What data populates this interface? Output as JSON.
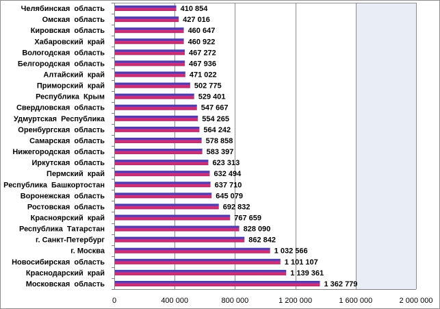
{
  "chart_data": {
    "type": "bar",
    "orientation": "horizontal",
    "categories": [
      "Челябинская  область",
      "Омская  область",
      "Кировская  область",
      "Хабаровский  край",
      "Вологодская  область",
      "Белгородская  область",
      "Алтайский  край",
      "Приморский  край",
      "Республика  Крым",
      "Свердловская  область",
      "Удмуртская  Республика",
      "Оренбургская  область",
      "Самарская  область",
      "Нижегородская  область",
      "Иркутская  область",
      "Пермский  край",
      "Республика  Башкортостан",
      "Воронежская  область",
      "Ростовская  область",
      "Красноярский  край",
      "Республика  Татарстан",
      "г. Санкт-Петербург",
      "г. Москва",
      "Новосибирская  область",
      "Краснодарский  край",
      "Московская  область"
    ],
    "values": [
      410854,
      427016,
      460647,
      460922,
      467272,
      467936,
      471022,
      502775,
      529401,
      547667,
      554265,
      564242,
      578858,
      583397,
      623313,
      632494,
      637710,
      645079,
      692832,
      767659,
      828090,
      862842,
      1032566,
      1101107,
      1139361,
      1362779
    ],
    "value_labels": [
      "410 854",
      "427 016",
      "460 647",
      "460 922",
      "467 272",
      "467 936",
      "471 022",
      "502 775",
      "529 401",
      "547 667",
      "554 265",
      "564 242",
      "578 858",
      "583 397",
      "623 313",
      "632 494",
      "637 710",
      "645 079",
      "692 832",
      "767 659",
      "828 090",
      "862 842",
      "1 032 566",
      "1 101 107",
      "1 139 361",
      "1 362 779"
    ],
    "xlim": [
      0,
      2000000
    ],
    "x_ticks": [
      0,
      400000,
      800000,
      1200000,
      1600000,
      2000000
    ],
    "x_tick_labels": [
      "0",
      "400 000",
      "800 000",
      "1 200 000",
      "1 600 000",
      "2 000 000"
    ],
    "grid": true,
    "legend": "none",
    "colors": {
      "bar_top": "#3a3aa8",
      "bar_bottom": "#e0307a",
      "plot_bg_shade": "#e9edf5",
      "gridline": "#8c8c8c"
    }
  }
}
